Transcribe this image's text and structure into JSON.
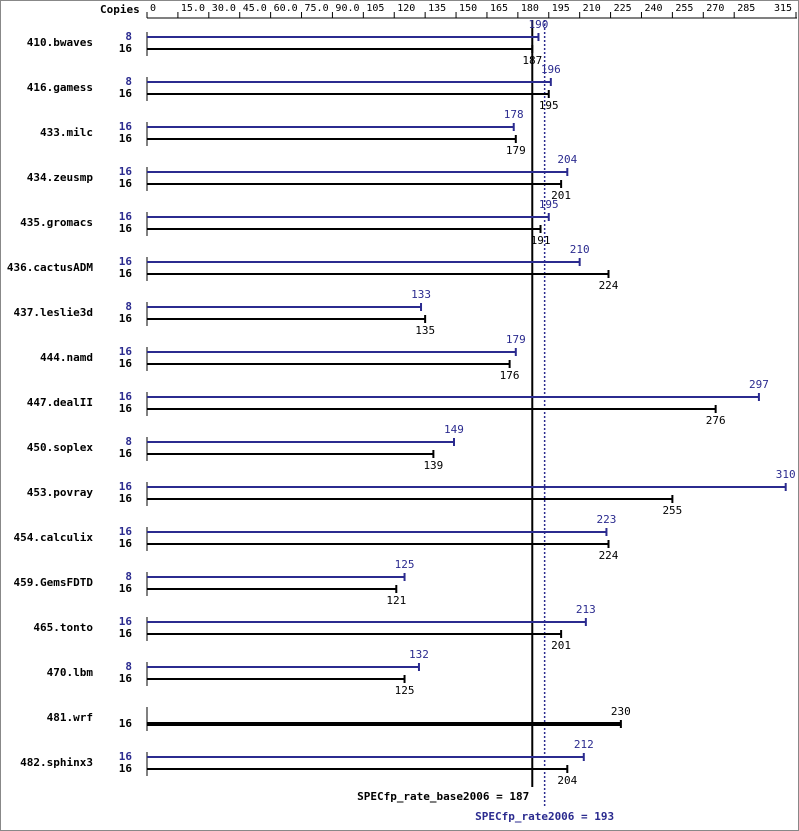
{
  "chart_data": {
    "type": "bar",
    "orientation": "horizontal",
    "axis_label": "Copies",
    "categories": [
      "410.bwaves",
      "416.gamess",
      "433.milc",
      "434.zeusmp",
      "435.gromacs",
      "436.cactusADM",
      "437.leslie3d",
      "444.namd",
      "447.dealII",
      "450.soplex",
      "453.povray",
      "454.calculix",
      "459.GemsFDTD",
      "465.tonto",
      "470.lbm",
      "481.wrf",
      "482.sphinx3"
    ],
    "series": [
      {
        "color": "#2b2b8f",
        "copies": [
          8,
          8,
          16,
          16,
          16,
          16,
          8,
          16,
          16,
          8,
          16,
          16,
          8,
          16,
          8,
          null,
          16
        ],
        "values": [
          190,
          196,
          178,
          204,
          195,
          210,
          133,
          179,
          297,
          149,
          310,
          223,
          125,
          213,
          132,
          null,
          212
        ]
      },
      {
        "color": "#000000",
        "copies": [
          16,
          16,
          16,
          16,
          16,
          16,
          16,
          16,
          16,
          16,
          16,
          16,
          16,
          16,
          16,
          16,
          16
        ],
        "values": [
          187,
          195,
          179,
          201,
          191,
          224,
          135,
          176,
          276,
          139,
          255,
          224,
          121,
          201,
          125,
          230,
          204
        ]
      }
    ],
    "xlim": [
      0,
      315
    ],
    "xticks": [
      0,
      {
        "value": 15,
        "label": "15.0"
      },
      {
        "value": 30,
        "label": "30.0"
      },
      {
        "value": 45,
        "label": "45.0"
      },
      {
        "value": 60,
        "label": "60.0"
      },
      {
        "value": 75,
        "label": "75.0"
      },
      {
        "value": 90,
        "label": "90.0"
      },
      105,
      120,
      135,
      150,
      165,
      180,
      195,
      210,
      225,
      240,
      255,
      270,
      285,
      315
    ],
    "reference_lines": [
      {
        "label": "SPECfp_rate_base2006 = 187",
        "value": 187,
        "color": "#000000"
      },
      {
        "label": "SPECfp_rate2006 = 193",
        "value": 193,
        "color": "#2b2b8f"
      }
    ]
  }
}
